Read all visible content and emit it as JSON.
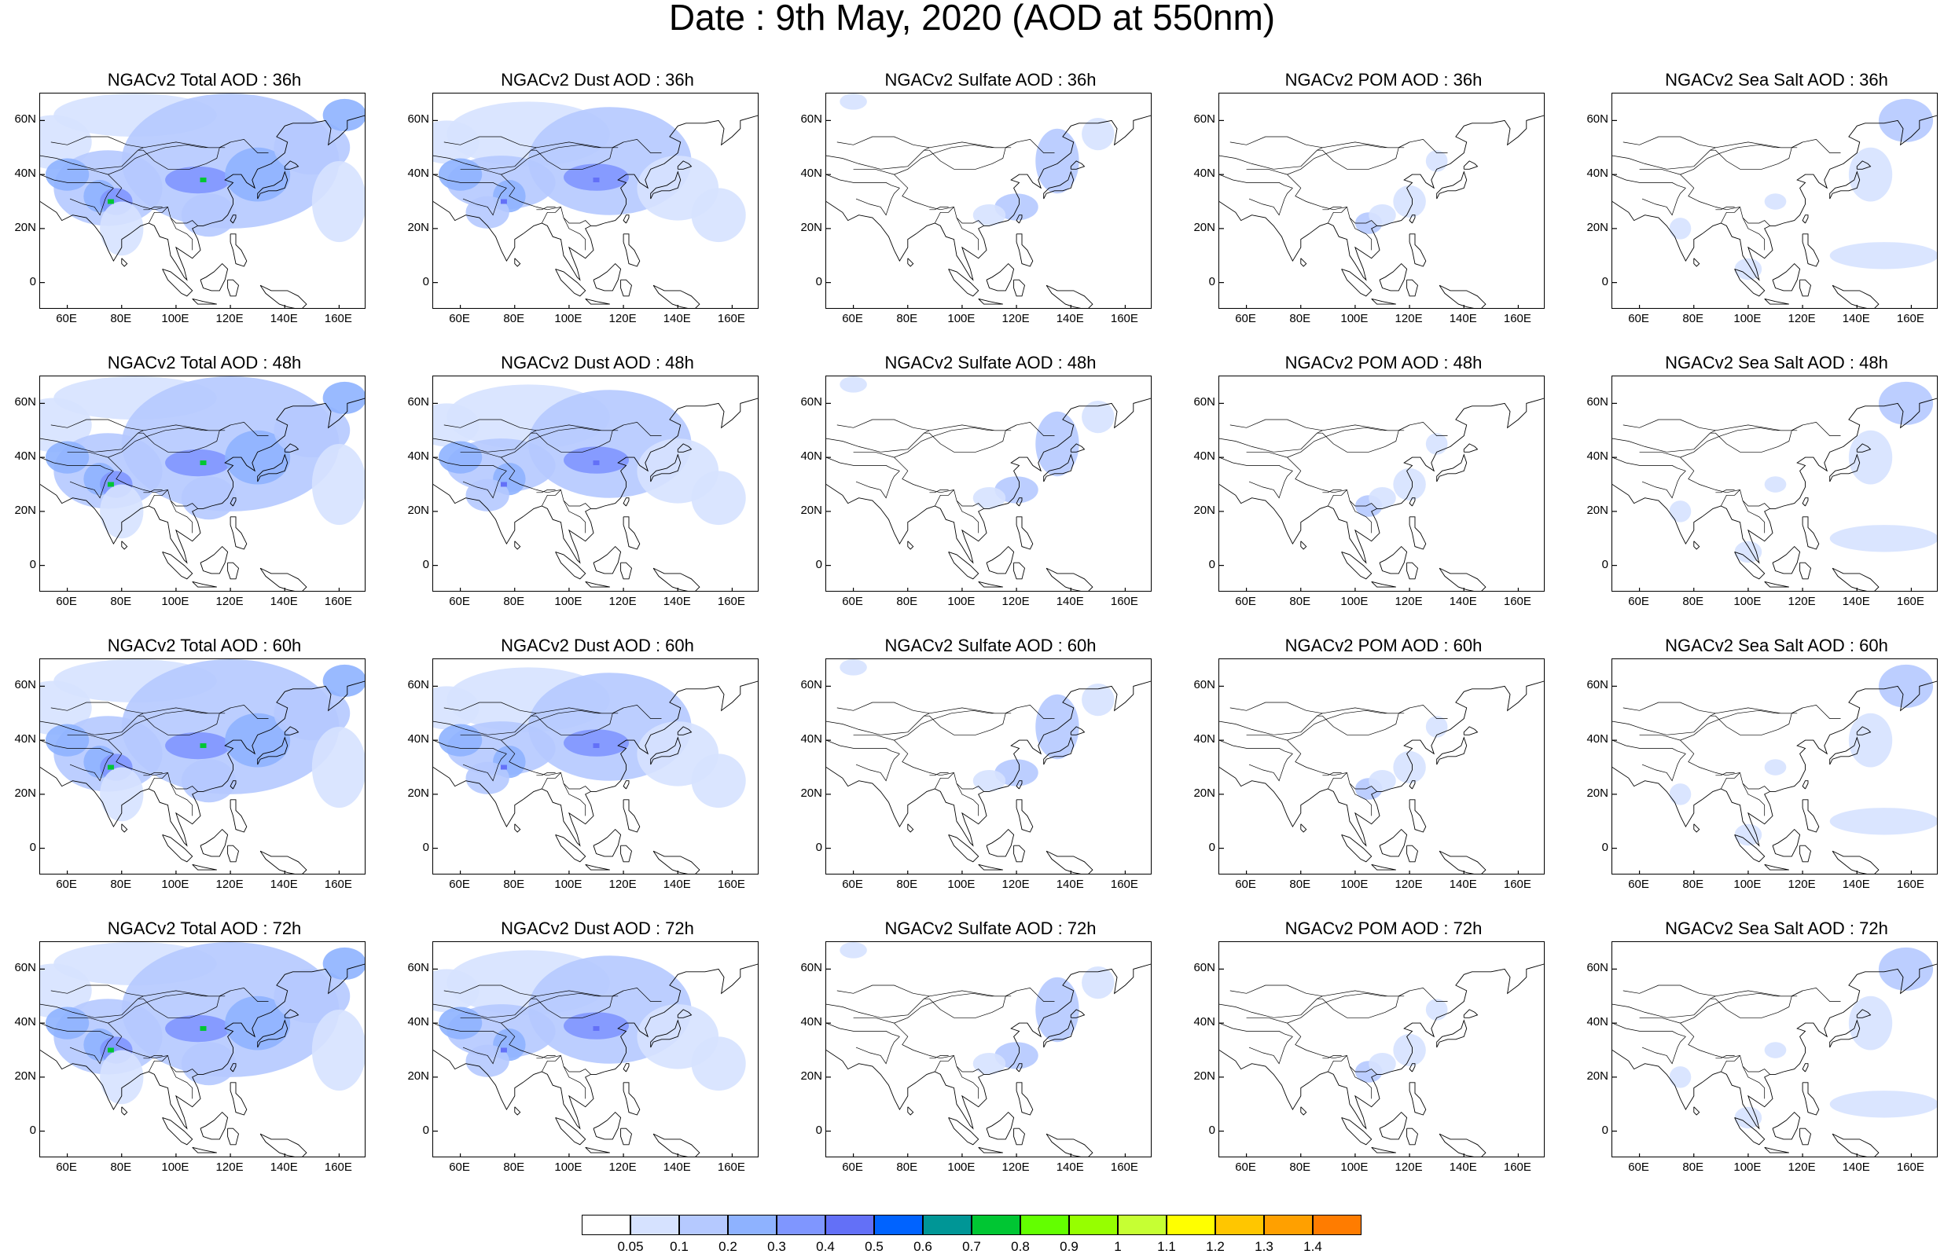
{
  "title": "Date : 9th May, 2020 (AOD at 550nm)",
  "lat_labels": [
    "60N",
    "40N",
    "20N",
    "0"
  ],
  "lon_labels": [
    "60E",
    "80E",
    "100E",
    "120E",
    "140E",
    "160E"
  ],
  "rows": [
    {
      "lead": "36h",
      "panels": [
        {
          "title": "NGACv2 Total AOD : 36h",
          "species": "total"
        },
        {
          "title": "NGACv2 Dust AOD : 36h",
          "species": "dust"
        },
        {
          "title": "NGACv2 Sulfate AOD : 36h",
          "species": "sulfate"
        },
        {
          "title": "NGACv2 POM AOD : 36h",
          "species": "pom"
        },
        {
          "title": "NGACv2 Sea Salt AOD : 36h",
          "species": "seasalt"
        }
      ]
    },
    {
      "lead": "48h",
      "panels": [
        {
          "title": "NGACv2 Total AOD : 48h",
          "species": "total"
        },
        {
          "title": "NGACv2 Dust AOD : 48h",
          "species": "dust"
        },
        {
          "title": "NGACv2 Sulfate AOD : 48h",
          "species": "sulfate"
        },
        {
          "title": "NGACv2 POM AOD : 48h",
          "species": "pom"
        },
        {
          "title": "NGACv2 Sea Salt AOD : 48h",
          "species": "seasalt"
        }
      ]
    },
    {
      "lead": "60h",
      "panels": [
        {
          "title": "NGACv2 Total AOD : 60h",
          "species": "total"
        },
        {
          "title": "NGACv2 Dust AOD : 60h",
          "species": "dust"
        },
        {
          "title": "NGACv2 Sulfate AOD : 60h",
          "species": "sulfate"
        },
        {
          "title": "NGACv2 POM AOD : 60h",
          "species": "pom"
        },
        {
          "title": "NGACv2 Sea Salt AOD : 60h",
          "species": "seasalt"
        }
      ]
    },
    {
      "lead": "72h",
      "panels": [
        {
          "title": "NGACv2 Total AOD : 72h",
          "species": "total"
        },
        {
          "title": "NGACv2 Dust AOD : 72h",
          "species": "dust"
        },
        {
          "title": "NGACv2 Sulfate AOD : 72h",
          "species": "sulfate"
        },
        {
          "title": "NGACv2 POM AOD : 72h",
          "species": "pom"
        },
        {
          "title": "NGACv2 Sea Salt  AOD : 72h",
          "species": "seasalt"
        }
      ]
    }
  ],
  "colorbar": {
    "labels": [
      "0.05",
      "0.1",
      "0.2",
      "0.3",
      "0.4",
      "0.5",
      "0.6",
      "0.7",
      "0.8",
      "0.9",
      "1",
      "1.1",
      "1.2",
      "1.3",
      "1.4"
    ],
    "colors": [
      "#ffffff",
      "#d6e2ff",
      "#b5c9ff",
      "#8eb2ff",
      "#7f96ff",
      "#6370f7",
      "#0063ff",
      "#009696",
      "#00c633",
      "#63ff00",
      "#96ff00",
      "#c6ff33",
      "#ffff00",
      "#ffc600",
      "#ffa000",
      "#ff7c00",
      "#ff1900"
    ]
  },
  "shading_colors": {
    "light": "#d6e2ff",
    "mid": "#b5c9ff",
    "strong": "#8eb2ff",
    "intense": "#7f96ff",
    "peak": "#6370f7",
    "green": "#00c633"
  }
}
